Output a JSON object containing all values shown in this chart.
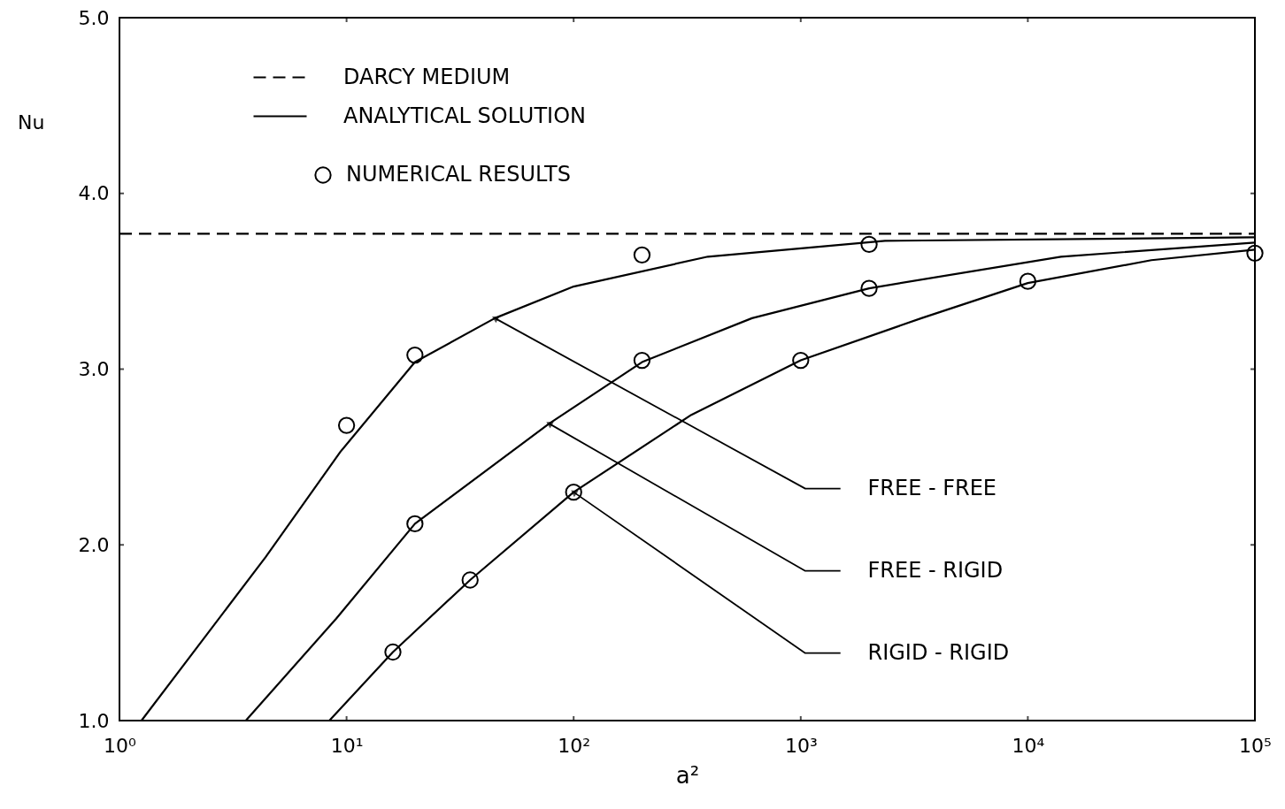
{
  "chart_data": {
    "type": "line",
    "xlabel": "a²",
    "ylabel": "Nu",
    "log": "x",
    "xlim": [
      1,
      100000
    ],
    "xticks": [
      {
        "value": 1,
        "label": "10⁰"
      },
      {
        "value": 10,
        "label": "10¹"
      },
      {
        "value": 100,
        "label": "10²"
      },
      {
        "value": 1000,
        "label": "10³"
      },
      {
        "value": 10000,
        "label": "10⁴"
      },
      {
        "value": 100000,
        "label": "10⁵"
      }
    ],
    "ylim": [
      1,
      5
    ],
    "yticks": [
      {
        "value": 1,
        "label": "1.0"
      },
      {
        "value": 2,
        "label": "2.0"
      },
      {
        "value": 3,
        "label": "3.0"
      },
      {
        "value": 4,
        "label": "4.0"
      },
      {
        "value": 5,
        "label": "5.0"
      }
    ],
    "grid": false,
    "legend": "top left",
    "line_style": "solid",
    "annotations": [
      "ANALYTICAL SOLUTION"
    ],
    "ref_lines": [
      {
        "axis": "y",
        "value": 3.77,
        "label": "DARCY MEDIUM",
        "line_style": "dashed",
        "color": "#000000"
      }
    ],
    "series": [
      {
        "name": "FREE - FREE",
        "color": "#000000",
        "marker": "none",
        "x": [
          1.25,
          4.4,
          9.4,
          20,
          45,
          100,
          390,
          2350,
          100000
        ],
        "values": [
          1.0,
          1.93,
          2.53,
          3.04,
          3.29,
          3.47,
          3.64,
          3.73,
          3.75
        ]
      },
      {
        "name": "FREE - RIGID",
        "color": "#000000",
        "marker": "none",
        "x": [
          3.6,
          9,
          20,
          78,
          200,
          610,
          2000,
          14000,
          100000
        ],
        "values": [
          1.0,
          1.58,
          2.12,
          2.69,
          3.04,
          3.29,
          3.46,
          3.64,
          3.72
        ]
      },
      {
        "name": "RIGID - RIGID",
        "color": "#000000",
        "marker": "none",
        "x": [
          8.4,
          16,
          35,
          100,
          330,
          1000,
          3400,
          10000,
          35000,
          100000
        ],
        "values": [
          1.0,
          1.39,
          1.8,
          2.3,
          2.74,
          3.05,
          3.29,
          3.49,
          3.62,
          3.68
        ]
      },
      {
        "name": "NUMERICAL RESULTS",
        "type": "scatter",
        "color": "#000000",
        "marker": "circle",
        "x": [
          10,
          20,
          200,
          2000,
          20,
          200,
          2000,
          16,
          35,
          100,
          1000,
          10000,
          100000
        ],
        "values": [
          2.68,
          3.08,
          3.65,
          3.71,
          2.12,
          3.05,
          3.46,
          1.39,
          1.8,
          2.3,
          3.05,
          3.5,
          3.66
        ]
      }
    ]
  }
}
